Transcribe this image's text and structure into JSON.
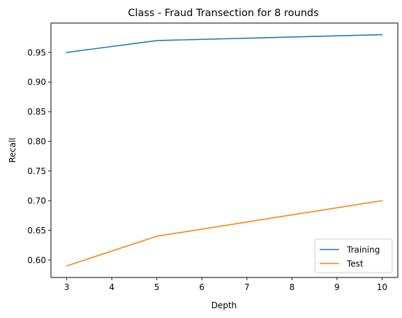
{
  "chart_data": {
    "type": "line",
    "title": "Class - Fraud Transection for 8 rounds",
    "xlabel": "Depth",
    "ylabel": "Recall",
    "x": [
      3,
      5,
      10
    ],
    "xlim": [
      2.65,
      10.35
    ],
    "ylim": [
      0.5705,
      0.9995
    ],
    "xticks": [
      3,
      4,
      5,
      6,
      7,
      8,
      9,
      10
    ],
    "yticks": [
      0.6,
      0.65,
      0.7,
      0.75,
      0.8,
      0.85,
      0.9,
      0.95
    ],
    "ytick_labels": [
      "0.60",
      "0.65",
      "0.70",
      "0.75",
      "0.80",
      "0.85",
      "0.90",
      "0.95"
    ],
    "grid": false,
    "legend_position": "lower-right",
    "series": [
      {
        "name": "Training",
        "color": "#1f77b4",
        "values": [
          0.95,
          0.97,
          0.98
        ]
      },
      {
        "name": "Test",
        "color": "#ff7f0e",
        "values": [
          0.59,
          0.64,
          0.7
        ]
      }
    ]
  }
}
